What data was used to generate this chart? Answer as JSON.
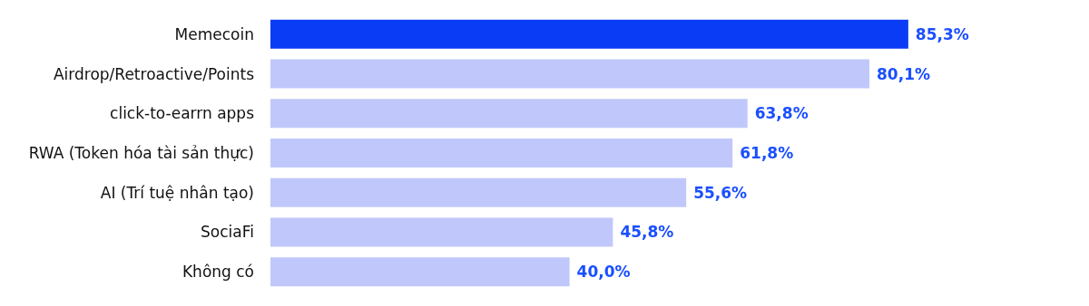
{
  "chart_data": {
    "type": "bar",
    "orientation": "horizontal",
    "categories": [
      "Memecoin",
      "Airdrop/Retroactive/Points",
      "click-to-earrn apps",
      "RWA (Token hóa tài sản thực)",
      "AI (Trí tuệ nhân tạo)",
      "SociaFi",
      "Không có"
    ],
    "values": [
      85.3,
      80.1,
      63.8,
      61.8,
      55.6,
      45.8,
      40.0
    ],
    "value_labels": [
      "85,3%",
      "80,1%",
      "63,8%",
      "61,8%",
      "55,6%",
      "45,8%",
      "40,0%"
    ],
    "colors": [
      "#0b3cf5",
      "#c0c8fb",
      "#c0c8fb",
      "#c0c8fb",
      "#c0c8fb",
      "#c0c8fb",
      "#c0c8fb"
    ]
  }
}
